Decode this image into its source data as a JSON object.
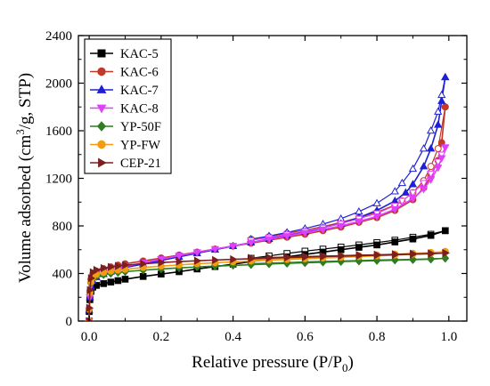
{
  "chart_data": {
    "type": "scatter",
    "xlabel": "Relative pressure (P/P",
    "xlabel_sub": "0",
    "xlabel_end": ")",
    "ylabel": "Volume adsorbed (cm",
    "ylabel_sup": "3",
    "ylabel_end": "/g, STP)",
    "xlim": [
      -0.03,
      1.05
    ],
    "ylim": [
      0,
      2400
    ],
    "xticks": [
      0.0,
      0.2,
      0.4,
      0.6,
      0.8,
      1.0
    ],
    "xtick_labels": [
      "0.0",
      "0.2",
      "0.4",
      "0.6",
      "0.8",
      "1.0"
    ],
    "yticks": [
      0,
      400,
      800,
      1200,
      1600,
      2000,
      2400
    ],
    "ytick_labels": [
      "0",
      "400",
      "800",
      "1200",
      "1600",
      "2000",
      "2400"
    ],
    "grid": false,
    "legend_position": "top-left",
    "note": "filled markers = adsorption branch, open markers = desorption branch",
    "series": [
      {
        "name": "KAC-5",
        "marker": "square",
        "color": "#000000",
        "adsorption": [
          [
            0.0,
            0
          ],
          [
            0.0,
            80
          ],
          [
            0.002,
            180
          ],
          [
            0.005,
            250
          ],
          [
            0.01,
            285
          ],
          [
            0.02,
            300
          ],
          [
            0.04,
            315
          ],
          [
            0.06,
            328
          ],
          [
            0.08,
            340
          ],
          [
            0.1,
            352
          ],
          [
            0.15,
            375
          ],
          [
            0.2,
            395
          ],
          [
            0.25,
            415
          ],
          [
            0.3,
            438
          ],
          [
            0.35,
            458
          ],
          [
            0.4,
            478
          ],
          [
            0.45,
            500
          ],
          [
            0.5,
            520
          ],
          [
            0.55,
            540
          ],
          [
            0.6,
            560
          ],
          [
            0.65,
            580
          ],
          [
            0.7,
            600
          ],
          [
            0.75,
            620
          ],
          [
            0.8,
            640
          ],
          [
            0.85,
            665
          ],
          [
            0.9,
            690
          ],
          [
            0.95,
            720
          ],
          [
            0.99,
            760
          ]
        ],
        "desorption": [
          [
            0.99,
            760
          ],
          [
            0.95,
            730
          ],
          [
            0.9,
            705
          ],
          [
            0.85,
            680
          ],
          [
            0.8,
            660
          ],
          [
            0.75,
            640
          ],
          [
            0.7,
            622
          ],
          [
            0.65,
            605
          ],
          [
            0.6,
            588
          ],
          [
            0.55,
            568
          ],
          [
            0.5,
            548
          ],
          [
            0.45,
            528
          ]
        ]
      },
      {
        "name": "KAC-6",
        "marker": "circle",
        "color": "#c0392b",
        "adsorption": [
          [
            0.0,
            0
          ],
          [
            0.0,
            100
          ],
          [
            0.002,
            250
          ],
          [
            0.005,
            350
          ],
          [
            0.01,
            395
          ],
          [
            0.02,
            420
          ],
          [
            0.04,
            440
          ],
          [
            0.06,
            455
          ],
          [
            0.08,
            470
          ],
          [
            0.1,
            482
          ],
          [
            0.15,
            505
          ],
          [
            0.2,
            530
          ],
          [
            0.25,
            555
          ],
          [
            0.3,
            580
          ],
          [
            0.35,
            605
          ],
          [
            0.4,
            630
          ],
          [
            0.45,
            655
          ],
          [
            0.5,
            680
          ],
          [
            0.55,
            705
          ],
          [
            0.6,
            730
          ],
          [
            0.65,
            760
          ],
          [
            0.7,
            790
          ],
          [
            0.75,
            830
          ],
          [
            0.8,
            870
          ],
          [
            0.85,
            930
          ],
          [
            0.9,
            1020
          ],
          [
            0.93,
            1120
          ],
          [
            0.95,
            1220
          ],
          [
            0.97,
            1350
          ],
          [
            0.98,
            1500
          ],
          [
            0.99,
            1800
          ]
        ],
        "desorption": [
          [
            0.99,
            1800
          ],
          [
            0.97,
            1450
          ],
          [
            0.95,
            1300
          ],
          [
            0.93,
            1180
          ],
          [
            0.9,
            1080
          ],
          [
            0.87,
            1010
          ],
          [
            0.85,
            975
          ],
          [
            0.8,
            915
          ],
          [
            0.75,
            870
          ],
          [
            0.7,
            830
          ],
          [
            0.65,
            795
          ],
          [
            0.6,
            765
          ],
          [
            0.55,
            738
          ],
          [
            0.5,
            710
          ],
          [
            0.45,
            688
          ]
        ]
      },
      {
        "name": "KAC-7",
        "marker": "triangle-up",
        "color": "#1f1fd6",
        "adsorption": [
          [
            0.0,
            0
          ],
          [
            0.0,
            90
          ],
          [
            0.002,
            200
          ],
          [
            0.005,
            290
          ],
          [
            0.01,
            340
          ],
          [
            0.02,
            370
          ],
          [
            0.04,
            395
          ],
          [
            0.06,
            415
          ],
          [
            0.08,
            432
          ],
          [
            0.1,
            450
          ],
          [
            0.15,
            480
          ],
          [
            0.2,
            510
          ],
          [
            0.25,
            540
          ],
          [
            0.3,
            570
          ],
          [
            0.35,
            600
          ],
          [
            0.4,
            630
          ],
          [
            0.45,
            660
          ],
          [
            0.5,
            690
          ],
          [
            0.55,
            720
          ],
          [
            0.6,
            750
          ],
          [
            0.65,
            785
          ],
          [
            0.7,
            820
          ],
          [
            0.75,
            870
          ],
          [
            0.8,
            930
          ],
          [
            0.85,
            1010
          ],
          [
            0.88,
            1080
          ],
          [
            0.9,
            1150
          ],
          [
            0.93,
            1300
          ],
          [
            0.95,
            1450
          ],
          [
            0.97,
            1650
          ],
          [
            0.98,
            1850
          ],
          [
            0.99,
            2050
          ]
        ],
        "desorption": [
          [
            0.99,
            2050
          ],
          [
            0.98,
            1900
          ],
          [
            0.97,
            1760
          ],
          [
            0.95,
            1600
          ],
          [
            0.93,
            1450
          ],
          [
            0.9,
            1280
          ],
          [
            0.87,
            1160
          ],
          [
            0.85,
            1090
          ],
          [
            0.8,
            990
          ],
          [
            0.75,
            920
          ],
          [
            0.7,
            860
          ],
          [
            0.65,
            815
          ],
          [
            0.6,
            778
          ],
          [
            0.55,
            745
          ],
          [
            0.5,
            715
          ],
          [
            0.45,
            688
          ]
        ]
      },
      {
        "name": "KAC-8",
        "marker": "triangle-down",
        "color": "#e040fb",
        "adsorption": [
          [
            0.0,
            0
          ],
          [
            0.0,
            90
          ],
          [
            0.002,
            200
          ],
          [
            0.005,
            300
          ],
          [
            0.01,
            350
          ],
          [
            0.02,
            380
          ],
          [
            0.04,
            405
          ],
          [
            0.06,
            425
          ],
          [
            0.08,
            442
          ],
          [
            0.1,
            458
          ],
          [
            0.15,
            490
          ],
          [
            0.2,
            520
          ],
          [
            0.25,
            550
          ],
          [
            0.3,
            578
          ],
          [
            0.35,
            605
          ],
          [
            0.4,
            632
          ],
          [
            0.45,
            660
          ],
          [
            0.5,
            688
          ],
          [
            0.55,
            715
          ],
          [
            0.6,
            742
          ],
          [
            0.65,
            770
          ],
          [
            0.7,
            800
          ],
          [
            0.75,
            838
          ],
          [
            0.8,
            880
          ],
          [
            0.85,
            940
          ],
          [
            0.9,
            1030
          ],
          [
            0.93,
            1110
          ],
          [
            0.95,
            1190
          ],
          [
            0.97,
            1290
          ],
          [
            0.98,
            1370
          ],
          [
            0.99,
            1460
          ]
        ],
        "desorption": [
          [
            0.99,
            1460
          ],
          [
            0.98,
            1400
          ],
          [
            0.97,
            1340
          ],
          [
            0.95,
            1240
          ],
          [
            0.93,
            1160
          ],
          [
            0.9,
            1080
          ],
          [
            0.87,
            1010
          ],
          [
            0.85,
            970
          ],
          [
            0.8,
            905
          ],
          [
            0.75,
            860
          ],
          [
            0.7,
            820
          ],
          [
            0.65,
            785
          ],
          [
            0.6,
            755
          ],
          [
            0.55,
            728
          ],
          [
            0.5,
            702
          ],
          [
            0.45,
            678
          ]
        ]
      },
      {
        "name": "YP-50F",
        "marker": "diamond",
        "color": "#2e7d1f",
        "adsorption": [
          [
            0.0,
            0
          ],
          [
            0.0,
            100
          ],
          [
            0.002,
            240
          ],
          [
            0.005,
            320
          ],
          [
            0.01,
            355
          ],
          [
            0.02,
            375
          ],
          [
            0.04,
            390
          ],
          [
            0.06,
            400
          ],
          [
            0.08,
            408
          ],
          [
            0.1,
            415
          ],
          [
            0.15,
            428
          ],
          [
            0.2,
            438
          ],
          [
            0.25,
            447
          ],
          [
            0.3,
            455
          ],
          [
            0.35,
            462
          ],
          [
            0.4,
            468
          ],
          [
            0.45,
            474
          ],
          [
            0.5,
            480
          ],
          [
            0.55,
            485
          ],
          [
            0.6,
            490
          ],
          [
            0.65,
            495
          ],
          [
            0.7,
            500
          ],
          [
            0.75,
            504
          ],
          [
            0.8,
            508
          ],
          [
            0.85,
            512
          ],
          [
            0.9,
            516
          ],
          [
            0.95,
            520
          ],
          [
            0.99,
            528
          ]
        ],
        "desorption": [
          [
            0.99,
            528
          ],
          [
            0.95,
            524
          ],
          [
            0.9,
            520
          ],
          [
            0.85,
            517
          ],
          [
            0.8,
            514
          ],
          [
            0.75,
            510
          ],
          [
            0.7,
            506
          ],
          [
            0.65,
            502
          ],
          [
            0.6,
            498
          ],
          [
            0.55,
            493
          ],
          [
            0.5,
            488
          ],
          [
            0.45,
            483
          ]
        ]
      },
      {
        "name": "YP-FW",
        "marker": "circle",
        "color": "#f39c12",
        "adsorption": [
          [
            0.0,
            0
          ],
          [
            0.0,
            100
          ],
          [
            0.002,
            240
          ],
          [
            0.005,
            330
          ],
          [
            0.01,
            370
          ],
          [
            0.02,
            392
          ],
          [
            0.04,
            408
          ],
          [
            0.06,
            420
          ],
          [
            0.08,
            428
          ],
          [
            0.1,
            435
          ],
          [
            0.15,
            450
          ],
          [
            0.2,
            462
          ],
          [
            0.25,
            472
          ],
          [
            0.3,
            482
          ],
          [
            0.35,
            490
          ],
          [
            0.4,
            498
          ],
          [
            0.45,
            505
          ],
          [
            0.5,
            512
          ],
          [
            0.55,
            518
          ],
          [
            0.6,
            524
          ],
          [
            0.65,
            530
          ],
          [
            0.7,
            536
          ],
          [
            0.75,
            542
          ],
          [
            0.8,
            548
          ],
          [
            0.85,
            555
          ],
          [
            0.9,
            562
          ],
          [
            0.95,
            570
          ],
          [
            0.99,
            585
          ]
        ],
        "desorption": [
          [
            0.99,
            585
          ],
          [
            0.95,
            577
          ],
          [
            0.9,
            570
          ],
          [
            0.85,
            563
          ],
          [
            0.8,
            556
          ],
          [
            0.75,
            550
          ],
          [
            0.7,
            544
          ],
          [
            0.65,
            538
          ],
          [
            0.6,
            532
          ],
          [
            0.55,
            526
          ],
          [
            0.5,
            520
          ],
          [
            0.45,
            514
          ]
        ]
      },
      {
        "name": "CEP-21",
        "marker": "triangle-right",
        "color": "#7b1f1f",
        "adsorption": [
          [
            0.0,
            0
          ],
          [
            0.0,
            110
          ],
          [
            0.002,
            260
          ],
          [
            0.005,
            360
          ],
          [
            0.01,
            410
          ],
          [
            0.02,
            430
          ],
          [
            0.04,
            445
          ],
          [
            0.06,
            455
          ],
          [
            0.08,
            463
          ],
          [
            0.1,
            470
          ],
          [
            0.15,
            482
          ],
          [
            0.2,
            492
          ],
          [
            0.25,
            500
          ],
          [
            0.3,
            507
          ],
          [
            0.35,
            513
          ],
          [
            0.4,
            519
          ],
          [
            0.45,
            524
          ],
          [
            0.5,
            529
          ],
          [
            0.55,
            534
          ],
          [
            0.6,
            538
          ],
          [
            0.65,
            542
          ],
          [
            0.7,
            546
          ],
          [
            0.75,
            550
          ],
          [
            0.8,
            554
          ],
          [
            0.85,
            558
          ],
          [
            0.9,
            562
          ],
          [
            0.95,
            566
          ],
          [
            0.99,
            572
          ]
        ],
        "desorption": [
          [
            0.99,
            572
          ],
          [
            0.95,
            569
          ],
          [
            0.9,
            566
          ],
          [
            0.85,
            562
          ],
          [
            0.8,
            558
          ],
          [
            0.75,
            555
          ],
          [
            0.7,
            551
          ],
          [
            0.65,
            547
          ],
          [
            0.6,
            543
          ],
          [
            0.55,
            539
          ],
          [
            0.5,
            535
          ],
          [
            0.45,
            531
          ]
        ]
      }
    ]
  }
}
